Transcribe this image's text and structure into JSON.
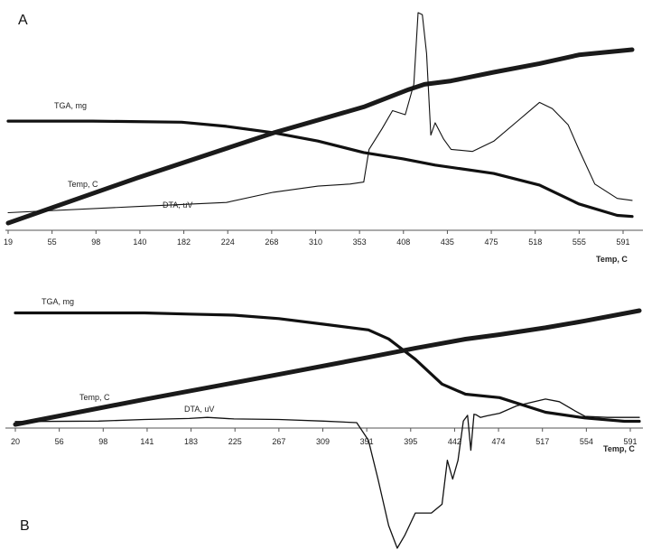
{
  "chart_data": [
    {
      "type": "line",
      "panel_label": "A",
      "xlabel": "Temp, C",
      "x_ticks": [
        "19",
        "55",
        "98",
        "140",
        "182",
        "224",
        "268",
        "310",
        "353",
        "408",
        "435",
        "475",
        "518",
        "555",
        "591"
      ],
      "grid": false,
      "series": [
        {
          "name": "TGA, mg",
          "color": "#111111",
          "x": [
            19,
            98,
            182,
            224,
            268,
            310,
            353,
            390,
            420,
            475,
            518,
            555,
            591,
            605
          ],
          "y": [
            0.93,
            0.93,
            0.92,
            0.88,
            0.82,
            0.74,
            0.63,
            0.57,
            0.51,
            0.43,
            0.32,
            0.14,
            0.03,
            0.02
          ]
        },
        {
          "name": "Temp, C",
          "color": "#1a1a1a",
          "x": [
            19,
            140,
            268,
            353,
            395,
            410,
            435,
            475,
            518,
            555,
            605
          ],
          "y": [
            0.0,
            0.26,
            0.52,
            0.67,
            0.77,
            0.8,
            0.82,
            0.87,
            0.92,
            0.97,
            1.0
          ]
        },
        {
          "name": "DTA, uV",
          "color": "#111111",
          "x": [
            19,
            140,
            224,
            268,
            310,
            340,
            353,
            358,
            370,
            380,
            392,
            400,
            404,
            408,
            412,
            416,
            420,
            428,
            435,
            455,
            475,
            500,
            518,
            530,
            545,
            555,
            570,
            591,
            605
          ],
          "y": [
            0.02,
            0.05,
            0.07,
            0.12,
            0.15,
            0.16,
            0.17,
            0.33,
            0.43,
            0.52,
            0.5,
            0.65,
            1.0,
            0.99,
            0.8,
            0.4,
            0.46,
            0.38,
            0.33,
            0.32,
            0.37,
            0.48,
            0.56,
            0.53,
            0.45,
            0.33,
            0.16,
            0.09,
            0.08
          ]
        }
      ]
    },
    {
      "type": "line",
      "panel_label": "B",
      "xlabel": "Temp, C",
      "x_ticks": [
        "20",
        "56",
        "98",
        "141",
        "183",
        "225",
        "267",
        "309",
        "351",
        "395",
        "442",
        "474",
        "517",
        "554",
        "591"
      ],
      "grid": false,
      "series": [
        {
          "name": "TGA, mg",
          "color": "#111111",
          "x": [
            20,
            141,
            183,
            225,
            267,
            309,
            351,
            370,
            395,
            420,
            442,
            474,
            517,
            554,
            591,
            605
          ],
          "y": [
            0.98,
            0.98,
            0.97,
            0.96,
            0.93,
            0.88,
            0.83,
            0.75,
            0.57,
            0.35,
            0.26,
            0.23,
            0.1,
            0.05,
            0.02,
            0.02
          ]
        },
        {
          "name": "Temp, C",
          "color": "#1a1a1a",
          "x": [
            20,
            141,
            267,
            351,
            395,
            442,
            474,
            517,
            554,
            605
          ],
          "y": [
            0.0,
            0.22,
            0.44,
            0.59,
            0.67,
            0.75,
            0.79,
            0.85,
            0.91,
            1.0
          ]
        },
        {
          "name": "DTA, uV",
          "color": "#111111",
          "x": [
            20,
            98,
            141,
            183,
            200,
            225,
            267,
            309,
            340,
            351,
            360,
            370,
            378,
            385,
            395,
            400,
            410,
            420,
            425,
            430,
            435,
            440,
            444,
            447,
            450,
            452,
            456,
            462,
            474,
            490,
            517,
            530,
            545,
            554,
            575,
            605
          ],
          "y": [
            0.02,
            0.03,
            0.06,
            0.08,
            0.1,
            0.07,
            0.06,
            0.03,
            0.0,
            -0.14,
            -0.45,
            -0.82,
            -1.0,
            -0.9,
            -0.72,
            -0.72,
            -0.72,
            -0.65,
            -0.3,
            -0.45,
            -0.3,
            0.03,
            0.14,
            -0.22,
            0.16,
            0.15,
            0.1,
            0.13,
            0.18,
            0.32,
            0.45,
            0.4,
            0.22,
            0.12,
            0.1,
            0.1
          ]
        }
      ]
    }
  ]
}
